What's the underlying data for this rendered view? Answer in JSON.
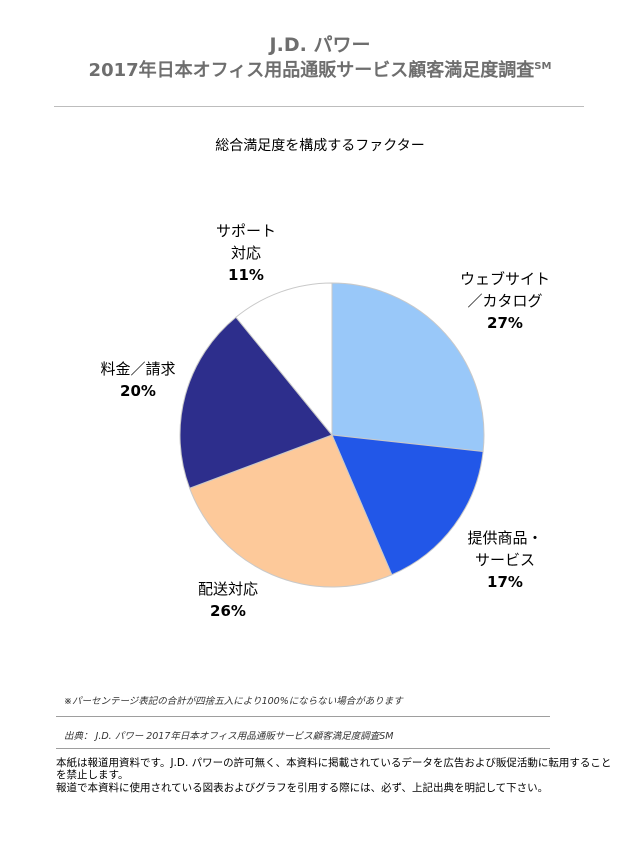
{
  "header": {
    "brand": "J.D. パワー",
    "title": "2017年日本オフィス用品通販サービス顧客満足度調査",
    "title_mark": "SM"
  },
  "chart_data": {
    "type": "pie",
    "title": "総合満足度を構成するファクター",
    "start": "12 o'clock",
    "direction": "clockwise",
    "slices": [
      {
        "label_lines": [
          "ウェブサイト",
          "／カタログ"
        ],
        "value": 27,
        "display": "27%",
        "color": "#99c8f9"
      },
      {
        "label_lines": [
          "提供商品・",
          "サービス"
        ],
        "value": 17,
        "display": "17%",
        "color": "#2257e8"
      },
      {
        "label_lines": [
          "配送対応"
        ],
        "value": 26,
        "display": "26%",
        "color": "#fdc99a"
      },
      {
        "label_lines": [
          "料金／請求"
        ],
        "value": 20,
        "display": "20%",
        "color": "#2d2e8c"
      },
      {
        "label_lines": [
          "サポート",
          "対応"
        ],
        "value": 11,
        "display": "11%",
        "color": "#ffffff"
      }
    ],
    "stroke_color": "#c9c9c9"
  },
  "notes": {
    "percent_note": "※パーセンテージ表記の合計が四捨五入により100%にならない場合があります",
    "source": "出典： J.D. パワー 2017年日本オフィス用品通販サービス顧客満足度調査SM"
  },
  "footer": {
    "line1": "本紙は報道用資料です。J.D. パワーの許可無く、本資料に掲載されているデータを広告および販促活動に転用すること",
    "line2": "を禁止します。",
    "line3": "報道で本資料に使用されている図表およびグラフを引用する際には、必ず、上記出典を明記して下さい。"
  }
}
